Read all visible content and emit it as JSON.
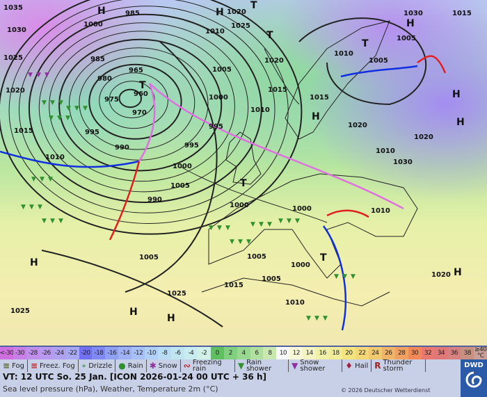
{
  "map": {
    "pressure_labels": [
      "1035",
      "1030",
      "1025",
      "1020",
      "1015",
      "1000",
      "985",
      "985",
      "980",
      "975",
      "970",
      "965",
      "960",
      "995",
      "990",
      "1010",
      "1005",
      "1000",
      "995",
      "1000",
      "1005",
      "1010",
      "1015",
      "1020",
      "1010",
      "1005",
      "1000",
      "995",
      "990",
      "1005",
      "1000",
      "1010",
      "1015",
      "1025",
      "1025",
      "1020",
      "1010",
      "1000",
      "1010",
      "1020",
      "1005",
      "1015",
      "1030",
      "1005",
      "1010",
      "1015",
      "1020",
      "1025",
      "1030",
      "1020",
      "1005"
    ],
    "systems": [
      "H",
      "T",
      "H",
      "H",
      "T",
      "T",
      "T",
      "H",
      "H",
      "H",
      "H",
      "H",
      "H",
      "T",
      "T",
      "H"
    ],
    "colors": {
      "cold_front": "#1030e0",
      "warm_front": "#e02020",
      "occlusion": "#e070e0",
      "isobar": "#222222"
    }
  },
  "scale": {
    "labels": [
      "<-30",
      "-30",
      "-28",
      "-26",
      "-24",
      "-22",
      "-20",
      "-18",
      "-16",
      "-14",
      "-12",
      "-10",
      "-8",
      "-6",
      "-4",
      "-2",
      "0",
      "2",
      "4",
      "6",
      "8",
      "10",
      "12",
      "14",
      "16",
      "18",
      "20",
      "22",
      "24",
      "26",
      "28",
      "30",
      "32",
      "34",
      "36",
      "38",
      "≥40 °C"
    ],
    "colors": [
      "#d070e0",
      "#c880e8",
      "#c090ec",
      "#b898f0",
      "#b0a0f0",
      "#a8a8f4",
      "#7070f0",
      "#8088f4",
      "#90a0f4",
      "#a0b0f4",
      "#a8c0f8",
      "#b0d0f8",
      "#b8dcf4",
      "#c0e4f0",
      "#c8ecf0",
      "#d0f0e8",
      "#60c060",
      "#80d080",
      "#98d890",
      "#b0e0a0",
      "#c8e8b0",
      "#f8f8f8",
      "#f8f8d8",
      "#f4f4c0",
      "#f0f0a8",
      "#f0ec98",
      "#f4e480",
      "#f4d878",
      "#f0c870",
      "#f0b468",
      "#f0a060",
      "#f08858",
      "#e87870",
      "#e07878",
      "#d88080",
      "#c89080",
      "#c8a098"
    ]
  },
  "legend": {
    "items": [
      {
        "label": "Fog",
        "icon": "fog-icon",
        "glyph": "≡",
        "color": "#556020"
      },
      {
        "label": "Freez. Fog",
        "icon": "freezing-fog-icon",
        "glyph": "≡",
        "color": "#c02020"
      },
      {
        "label": "Drizzle",
        "icon": "drizzle-icon",
        "glyph": "∘",
        "color": "#309030"
      },
      {
        "label": "Rain",
        "icon": "rain-icon",
        "glyph": "●",
        "color": "#309030"
      },
      {
        "label": "Snow",
        "icon": "snow-icon",
        "glyph": "✱",
        "color": "#9030a0"
      },
      {
        "label": "Freezing rain",
        "icon": "freezing-rain-icon",
        "glyph": "∾",
        "color": "#c02020"
      },
      {
        "label": "Rain shower",
        "icon": "rain-shower-icon",
        "glyph": "▼",
        "color": "#309030"
      },
      {
        "label": "Snow shower",
        "icon": "snow-shower-icon",
        "glyph": "▼",
        "color": "#9030a0"
      },
      {
        "label": "Hail",
        "icon": "hail-icon",
        "glyph": "♦",
        "color": "#a02040"
      },
      {
        "label": "Thunder storm",
        "icon": "thunderstorm-icon",
        "glyph": "R",
        "color": "#a02020"
      }
    ]
  },
  "footer": {
    "vt": "VT: 12 UTC So.  25 Jan. [ICON 2026-01-24  00 UTC + 36 h]",
    "subtitle": "Sea level pressure (hPa), Weather, Temperature 2m (°C)",
    "copyright": "© 2026 Deutscher Wetterdienst",
    "logo": "DWD"
  }
}
